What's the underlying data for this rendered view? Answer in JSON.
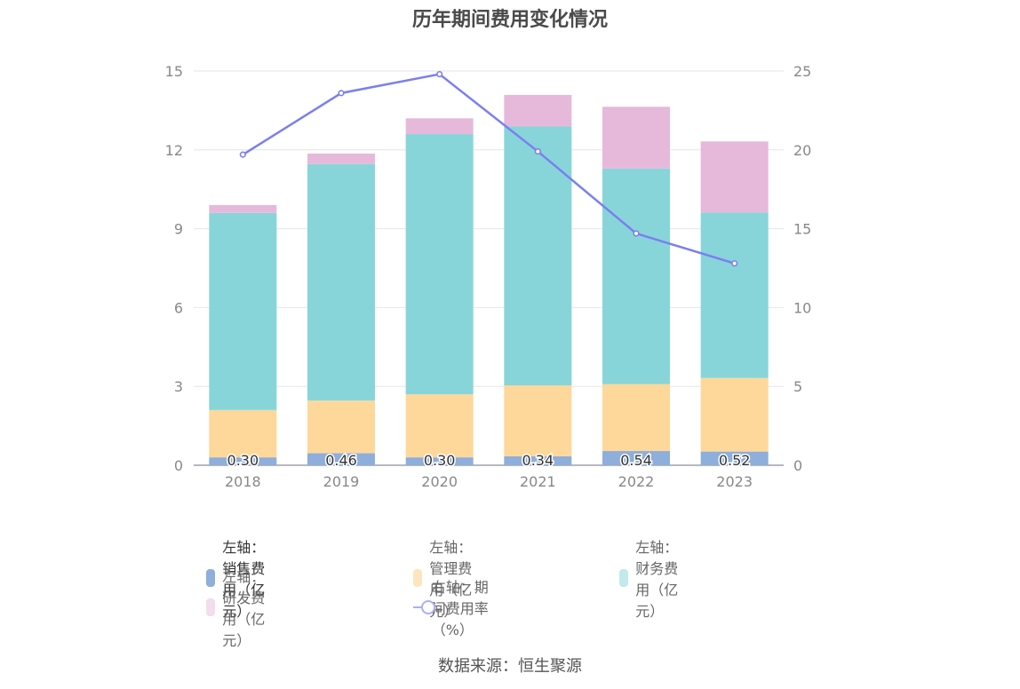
{
  "title": "历年期间费用变化情况",
  "source": "数据来源：恒生聚源",
  "chart_data": {
    "type": "bar",
    "stacked": true,
    "categories": [
      "2018",
      "2019",
      "2020",
      "2021",
      "2022",
      "2023"
    ],
    "left_axis": {
      "ylim": [
        0,
        15
      ],
      "ticks": [
        "0",
        "3",
        "6",
        "9",
        "12",
        "15"
      ]
    },
    "right_axis": {
      "ylim": [
        0,
        25
      ],
      "ticks": [
        "0",
        "5",
        "10",
        "15",
        "20",
        "25"
      ]
    },
    "series": [
      {
        "name": "左轴：销售费用（亿元）",
        "type": "bar",
        "axis": "left",
        "color": "#8eaedb",
        "values": [
          0.3,
          0.46,
          0.3,
          0.34,
          0.54,
          0.52
        ],
        "labels": [
          "0.30",
          "0.46",
          "0.30",
          "0.34",
          "0.54",
          "0.52"
        ]
      },
      {
        "name": "左轴：管理费用（亿元）",
        "type": "bar",
        "axis": "left",
        "color": "#fed89a",
        "values": [
          1.8,
          2.0,
          2.4,
          2.7,
          2.55,
          2.8
        ]
      },
      {
        "name": "左轴：财务费用（亿元）",
        "type": "bar",
        "axis": "left",
        "color": "#87d5d9",
        "values": [
          7.5,
          9.0,
          9.9,
          9.85,
          8.2,
          6.3
        ]
      },
      {
        "name": "左轴：研发费用（亿元）",
        "type": "bar",
        "axis": "left",
        "color": "#e6b9db",
        "values": [
          0.3,
          0.4,
          0.6,
          1.2,
          2.35,
          2.7
        ]
      },
      {
        "name": "右轴：期间费用率（%）",
        "type": "line",
        "axis": "right",
        "color": "#7b7ff0",
        "values": [
          19.7,
          23.6,
          24.8,
          19.9,
          14.7,
          12.8
        ]
      }
    ],
    "legend_position": "bottom",
    "grid": true
  }
}
